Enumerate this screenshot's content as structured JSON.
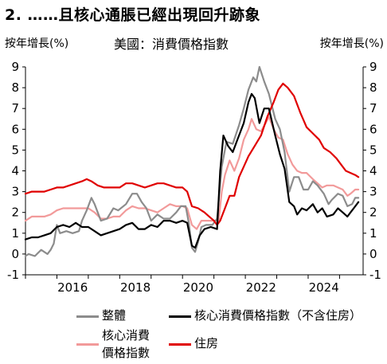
{
  "header": {
    "title": "2. ……且核心通脹已經出現回升跡象"
  },
  "chart_data": {
    "type": "line",
    "title": "美國：消費價格指數",
    "ylabel_left": "按年增長(%)",
    "ylabel_right": "按年增長(%)",
    "xlabel": "",
    "xlim": [
      2015.0,
      2025.75
    ],
    "ylim": [
      -1,
      9
    ],
    "yticks": [
      -1,
      0,
      1,
      2,
      3,
      4,
      5,
      6,
      7,
      8,
      9
    ],
    "xtick_labels": [
      "2016",
      "2018",
      "2020",
      "2022",
      "2024"
    ],
    "xtick_values": [
      2016,
      2018,
      2020,
      2022,
      2024
    ],
    "grid": false,
    "legend_position": "bottom",
    "series": [
      {
        "name": "整體",
        "color": "#8c8c8c",
        "points": [
          [
            2015.0,
            -0.1
          ],
          [
            2015.1,
            0.0
          ],
          [
            2015.3,
            -0.1
          ],
          [
            2015.5,
            0.2
          ],
          [
            2015.7,
            0.0
          ],
          [
            2015.8,
            0.2
          ],
          [
            2015.9,
            0.5
          ],
          [
            2016.0,
            1.4
          ],
          [
            2016.1,
            1.0
          ],
          [
            2016.3,
            1.1
          ],
          [
            2016.5,
            1.0
          ],
          [
            2016.7,
            1.1
          ],
          [
            2016.8,
            1.6
          ],
          [
            2016.95,
            2.1
          ],
          [
            2017.1,
            2.7
          ],
          [
            2017.2,
            2.4
          ],
          [
            2017.4,
            1.6
          ],
          [
            2017.6,
            1.7
          ],
          [
            2017.8,
            2.2
          ],
          [
            2017.95,
            2.1
          ],
          [
            2018.2,
            2.4
          ],
          [
            2018.4,
            2.9
          ],
          [
            2018.55,
            2.9
          ],
          [
            2018.7,
            2.5
          ],
          [
            2018.85,
            2.2
          ],
          [
            2019.0,
            1.6
          ],
          [
            2019.2,
            1.9
          ],
          [
            2019.4,
            1.7
          ],
          [
            2019.6,
            1.7
          ],
          [
            2019.8,
            2.0
          ],
          [
            2019.95,
            2.3
          ],
          [
            2020.1,
            2.3
          ],
          [
            2020.2,
            1.5
          ],
          [
            2020.3,
            0.3
          ],
          [
            2020.4,
            0.1
          ],
          [
            2020.5,
            0.6
          ],
          [
            2020.6,
            1.3
          ],
          [
            2020.75,
            1.4
          ],
          [
            2020.95,
            1.4
          ],
          [
            2021.1,
            1.7
          ],
          [
            2021.25,
            4.2
          ],
          [
            2021.4,
            5.4
          ],
          [
            2021.6,
            5.3
          ],
          [
            2021.8,
            6.2
          ],
          [
            2021.95,
            7.0
          ],
          [
            2022.1,
            7.9
          ],
          [
            2022.25,
            8.5
          ],
          [
            2022.35,
            8.3
          ],
          [
            2022.45,
            9.0
          ],
          [
            2022.6,
            8.3
          ],
          [
            2022.75,
            7.7
          ],
          [
            2022.95,
            6.5
          ],
          [
            2023.1,
            6.0
          ],
          [
            2023.25,
            4.9
          ],
          [
            2023.4,
            3.0
          ],
          [
            2023.55,
            3.7
          ],
          [
            2023.7,
            3.7
          ],
          [
            2023.85,
            3.1
          ],
          [
            2024.0,
            3.1
          ],
          [
            2024.15,
            3.5
          ],
          [
            2024.3,
            3.3
          ],
          [
            2024.5,
            2.9
          ],
          [
            2024.65,
            2.4
          ],
          [
            2024.75,
            2.6
          ],
          [
            2024.95,
            2.9
          ],
          [
            2025.1,
            2.8
          ],
          [
            2025.25,
            2.3
          ],
          [
            2025.4,
            2.4
          ],
          [
            2025.5,
            2.7
          ],
          [
            2025.6,
            2.7
          ]
        ]
      },
      {
        "name": "核心消費價格指數（不含住房）",
        "color": "#000000",
        "points": [
          [
            2015.0,
            0.7
          ],
          [
            2015.2,
            0.8
          ],
          [
            2015.4,
            0.8
          ],
          [
            2015.6,
            0.9
          ],
          [
            2015.8,
            1.0
          ],
          [
            2016.0,
            1.3
          ],
          [
            2016.2,
            1.4
          ],
          [
            2016.4,
            1.3
          ],
          [
            2016.6,
            1.5
          ],
          [
            2016.8,
            1.3
          ],
          [
            2017.0,
            1.3
          ],
          [
            2017.2,
            1.1
          ],
          [
            2017.4,
            0.9
          ],
          [
            2017.6,
            1.0
          ],
          [
            2017.8,
            1.1
          ],
          [
            2018.0,
            1.2
          ],
          [
            2018.2,
            1.4
          ],
          [
            2018.4,
            1.5
          ],
          [
            2018.6,
            1.2
          ],
          [
            2018.8,
            1.2
          ],
          [
            2019.0,
            1.4
          ],
          [
            2019.2,
            1.3
          ],
          [
            2019.4,
            1.6
          ],
          [
            2019.6,
            1.6
          ],
          [
            2019.8,
            1.5
          ],
          [
            2020.0,
            1.6
          ],
          [
            2020.15,
            1.5
          ],
          [
            2020.3,
            0.4
          ],
          [
            2020.4,
            0.3
          ],
          [
            2020.55,
            0.9
          ],
          [
            2020.7,
            1.2
          ],
          [
            2020.9,
            1.3
          ],
          [
            2021.1,
            1.2
          ],
          [
            2021.2,
            4.0
          ],
          [
            2021.3,
            5.7
          ],
          [
            2021.45,
            5.2
          ],
          [
            2021.6,
            4.9
          ],
          [
            2021.75,
            5.5
          ],
          [
            2021.95,
            6.3
          ],
          [
            2022.1,
            7.3
          ],
          [
            2022.2,
            7.7
          ],
          [
            2022.3,
            7.5
          ],
          [
            2022.45,
            6.3
          ],
          [
            2022.6,
            7.0
          ],
          [
            2022.75,
            7.0
          ],
          [
            2022.95,
            5.7
          ],
          [
            2023.1,
            4.8
          ],
          [
            2023.25,
            4.1
          ],
          [
            2023.4,
            2.5
          ],
          [
            2023.55,
            2.3
          ],
          [
            2023.65,
            1.9
          ],
          [
            2023.8,
            2.2
          ],
          [
            2023.95,
            2.1
          ],
          [
            2024.15,
            2.4
          ],
          [
            2024.3,
            2.0
          ],
          [
            2024.45,
            2.2
          ],
          [
            2024.6,
            1.8
          ],
          [
            2024.8,
            1.9
          ],
          [
            2024.95,
            2.2
          ],
          [
            2025.1,
            2.0
          ],
          [
            2025.25,
            1.8
          ],
          [
            2025.35,
            2.0
          ],
          [
            2025.45,
            2.2
          ],
          [
            2025.6,
            2.5
          ]
        ]
      },
      {
        "name": "核心消費價格指數",
        "color": "#f29a9a",
        "points": [
          [
            2015.0,
            1.6
          ],
          [
            2015.2,
            1.8
          ],
          [
            2015.4,
            1.8
          ],
          [
            2015.6,
            1.8
          ],
          [
            2015.8,
            1.9
          ],
          [
            2016.0,
            2.1
          ],
          [
            2016.2,
            2.2
          ],
          [
            2016.4,
            2.2
          ],
          [
            2016.6,
            2.2
          ],
          [
            2016.8,
            2.2
          ],
          [
            2017.0,
            2.2
          ],
          [
            2017.2,
            2.0
          ],
          [
            2017.4,
            1.7
          ],
          [
            2017.6,
            1.7
          ],
          [
            2017.8,
            1.8
          ],
          [
            2018.0,
            1.8
          ],
          [
            2018.2,
            2.1
          ],
          [
            2018.4,
            2.3
          ],
          [
            2018.6,
            2.2
          ],
          [
            2018.8,
            2.2
          ],
          [
            2019.0,
            2.1
          ],
          [
            2019.2,
            2.0
          ],
          [
            2019.4,
            2.2
          ],
          [
            2019.6,
            2.4
          ],
          [
            2019.8,
            2.3
          ],
          [
            2020.0,
            2.3
          ],
          [
            2020.15,
            2.2
          ],
          [
            2020.3,
            1.4
          ],
          [
            2020.45,
            1.2
          ],
          [
            2020.6,
            1.6
          ],
          [
            2020.8,
            1.6
          ],
          [
            2020.95,
            1.6
          ],
          [
            2021.15,
            1.6
          ],
          [
            2021.25,
            3.0
          ],
          [
            2021.35,
            3.8
          ],
          [
            2021.5,
            4.5
          ],
          [
            2021.65,
            4.0
          ],
          [
            2021.8,
            4.6
          ],
          [
            2021.95,
            5.5
          ],
          [
            2022.1,
            6.0
          ],
          [
            2022.2,
            6.5
          ],
          [
            2022.35,
            6.0
          ],
          [
            2022.5,
            5.9
          ],
          [
            2022.65,
            6.3
          ],
          [
            2022.75,
            6.6
          ],
          [
            2022.9,
            6.0
          ],
          [
            2023.05,
            5.6
          ],
          [
            2023.2,
            5.5
          ],
          [
            2023.35,
            4.8
          ],
          [
            2023.5,
            4.3
          ],
          [
            2023.65,
            4.0
          ],
          [
            2023.8,
            3.9
          ],
          [
            2023.95,
            3.9
          ],
          [
            2024.15,
            3.6
          ],
          [
            2024.3,
            3.4
          ],
          [
            2024.45,
            3.2
          ],
          [
            2024.6,
            3.3
          ],
          [
            2024.8,
            3.3
          ],
          [
            2024.95,
            3.2
          ],
          [
            2025.1,
            3.1
          ],
          [
            2025.25,
            2.8
          ],
          [
            2025.35,
            2.9
          ],
          [
            2025.5,
            3.1
          ],
          [
            2025.6,
            3.1
          ]
        ]
      },
      {
        "name": "住房",
        "color": "#e00000",
        "points": [
          [
            2015.0,
            2.9
          ],
          [
            2015.2,
            3.0
          ],
          [
            2015.4,
            3.0
          ],
          [
            2015.6,
            3.0
          ],
          [
            2015.8,
            3.1
          ],
          [
            2016.0,
            3.2
          ],
          [
            2016.2,
            3.2
          ],
          [
            2016.4,
            3.3
          ],
          [
            2016.6,
            3.4
          ],
          [
            2016.8,
            3.5
          ],
          [
            2016.95,
            3.6
          ],
          [
            2017.1,
            3.5
          ],
          [
            2017.3,
            3.3
          ],
          [
            2017.5,
            3.2
          ],
          [
            2017.7,
            3.2
          ],
          [
            2017.9,
            3.2
          ],
          [
            2018.0,
            3.2
          ],
          [
            2018.2,
            3.4
          ],
          [
            2018.4,
            3.4
          ],
          [
            2018.6,
            3.3
          ],
          [
            2018.8,
            3.2
          ],
          [
            2019.0,
            3.3
          ],
          [
            2019.2,
            3.4
          ],
          [
            2019.4,
            3.4
          ],
          [
            2019.6,
            3.3
          ],
          [
            2019.8,
            3.2
          ],
          [
            2020.0,
            3.2
          ],
          [
            2020.15,
            3.0
          ],
          [
            2020.3,
            2.3
          ],
          [
            2020.5,
            2.2
          ],
          [
            2020.7,
            2.0
          ],
          [
            2020.85,
            1.8
          ],
          [
            2021.0,
            1.6
          ],
          [
            2021.1,
            1.4
          ],
          [
            2021.2,
            1.6
          ],
          [
            2021.35,
            2.2
          ],
          [
            2021.5,
            2.8
          ],
          [
            2021.65,
            2.8
          ],
          [
            2021.8,
            3.7
          ],
          [
            2021.95,
            4.2
          ],
          [
            2022.1,
            4.7
          ],
          [
            2022.3,
            5.2
          ],
          [
            2022.5,
            5.7
          ],
          [
            2022.7,
            6.6
          ],
          [
            2022.9,
            7.3
          ],
          [
            2023.05,
            7.9
          ],
          [
            2023.2,
            8.2
          ],
          [
            2023.35,
            8.0
          ],
          [
            2023.55,
            7.6
          ],
          [
            2023.75,
            6.8
          ],
          [
            2023.95,
            6.1
          ],
          [
            2024.15,
            5.8
          ],
          [
            2024.35,
            5.5
          ],
          [
            2024.5,
            5.1
          ],
          [
            2024.7,
            4.9
          ],
          [
            2024.9,
            4.6
          ],
          [
            2025.05,
            4.3
          ],
          [
            2025.2,
            4.0
          ],
          [
            2025.35,
            3.9
          ],
          [
            2025.5,
            3.8
          ],
          [
            2025.6,
            3.7
          ]
        ]
      }
    ]
  },
  "legend": {
    "items": [
      {
        "label": "整體",
        "color": "#8c8c8c"
      },
      {
        "label": "核心消費價格指數（不含住房）",
        "color": "#000000"
      },
      {
        "label_line1": "核心消費",
        "label_line2": "價格指數",
        "color": "#f29a9a"
      },
      {
        "label": "住房",
        "color": "#e00000"
      }
    ]
  }
}
